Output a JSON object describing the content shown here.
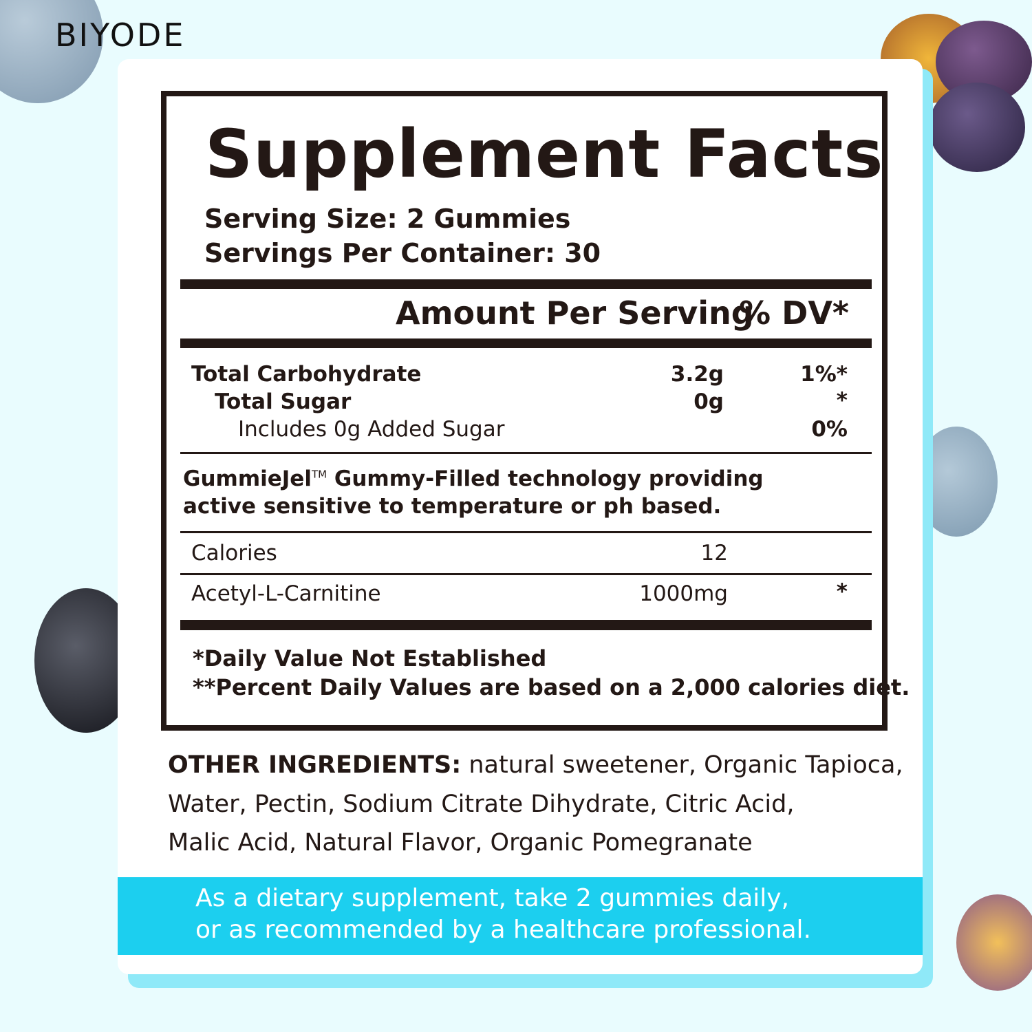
{
  "brand": {
    "logo": "BIYODE"
  },
  "label": {
    "title": "Supplement Facts",
    "serving_size": "Serving Size: 2 Gummies",
    "servings_per_container": "Servings Per Container: 30",
    "header_amount": "Amount Per Serving",
    "header_dv": "% DV*",
    "rows": [
      {
        "name": "Total Carbohydrate",
        "amount": "3.2g",
        "dv": "1%*"
      },
      {
        "name": "Total Sugar",
        "amount": "0g",
        "dv": "*"
      },
      {
        "name": "Includes 0g Added Sugar",
        "amount": "",
        "dv": "0%"
      }
    ],
    "tech_line1_brand": "GummieJel",
    "tech_tm": "TM",
    "tech_line1_rest": "Gummy-Filled technology providing",
    "tech_line2": "active sensitive to temperature or ph based.",
    "calories_label": "Calories",
    "calories_value": "12",
    "ingredient_name": "Acetyl-L-Carnitine",
    "ingredient_amount": "1000mg",
    "ingredient_dv": "*",
    "footnote1": "*Daily Value Not Established",
    "footnote2": "**Percent Daily Values are based on a 2,000 calories diet."
  },
  "other_ingredients": {
    "heading": "OTHER INGREDIENTS:",
    "line1": "natural sweetener, Organic Tapioca,",
    "line2": "Water, Pectin, Sodium Citrate Dihydrate, Citric Acid,",
    "line3": "Malic Acid, Natural Flavor, Organic Pomegranate"
  },
  "directions": {
    "line1": "As a dietary supplement, take 2 gummies daily,",
    "line2": "or as recommended by a healthcare professional."
  },
  "colors": {
    "background": "#e9fcfe",
    "band": "#1ccfef",
    "shadow": "#8fe9f8",
    "text": "#231815"
  }
}
